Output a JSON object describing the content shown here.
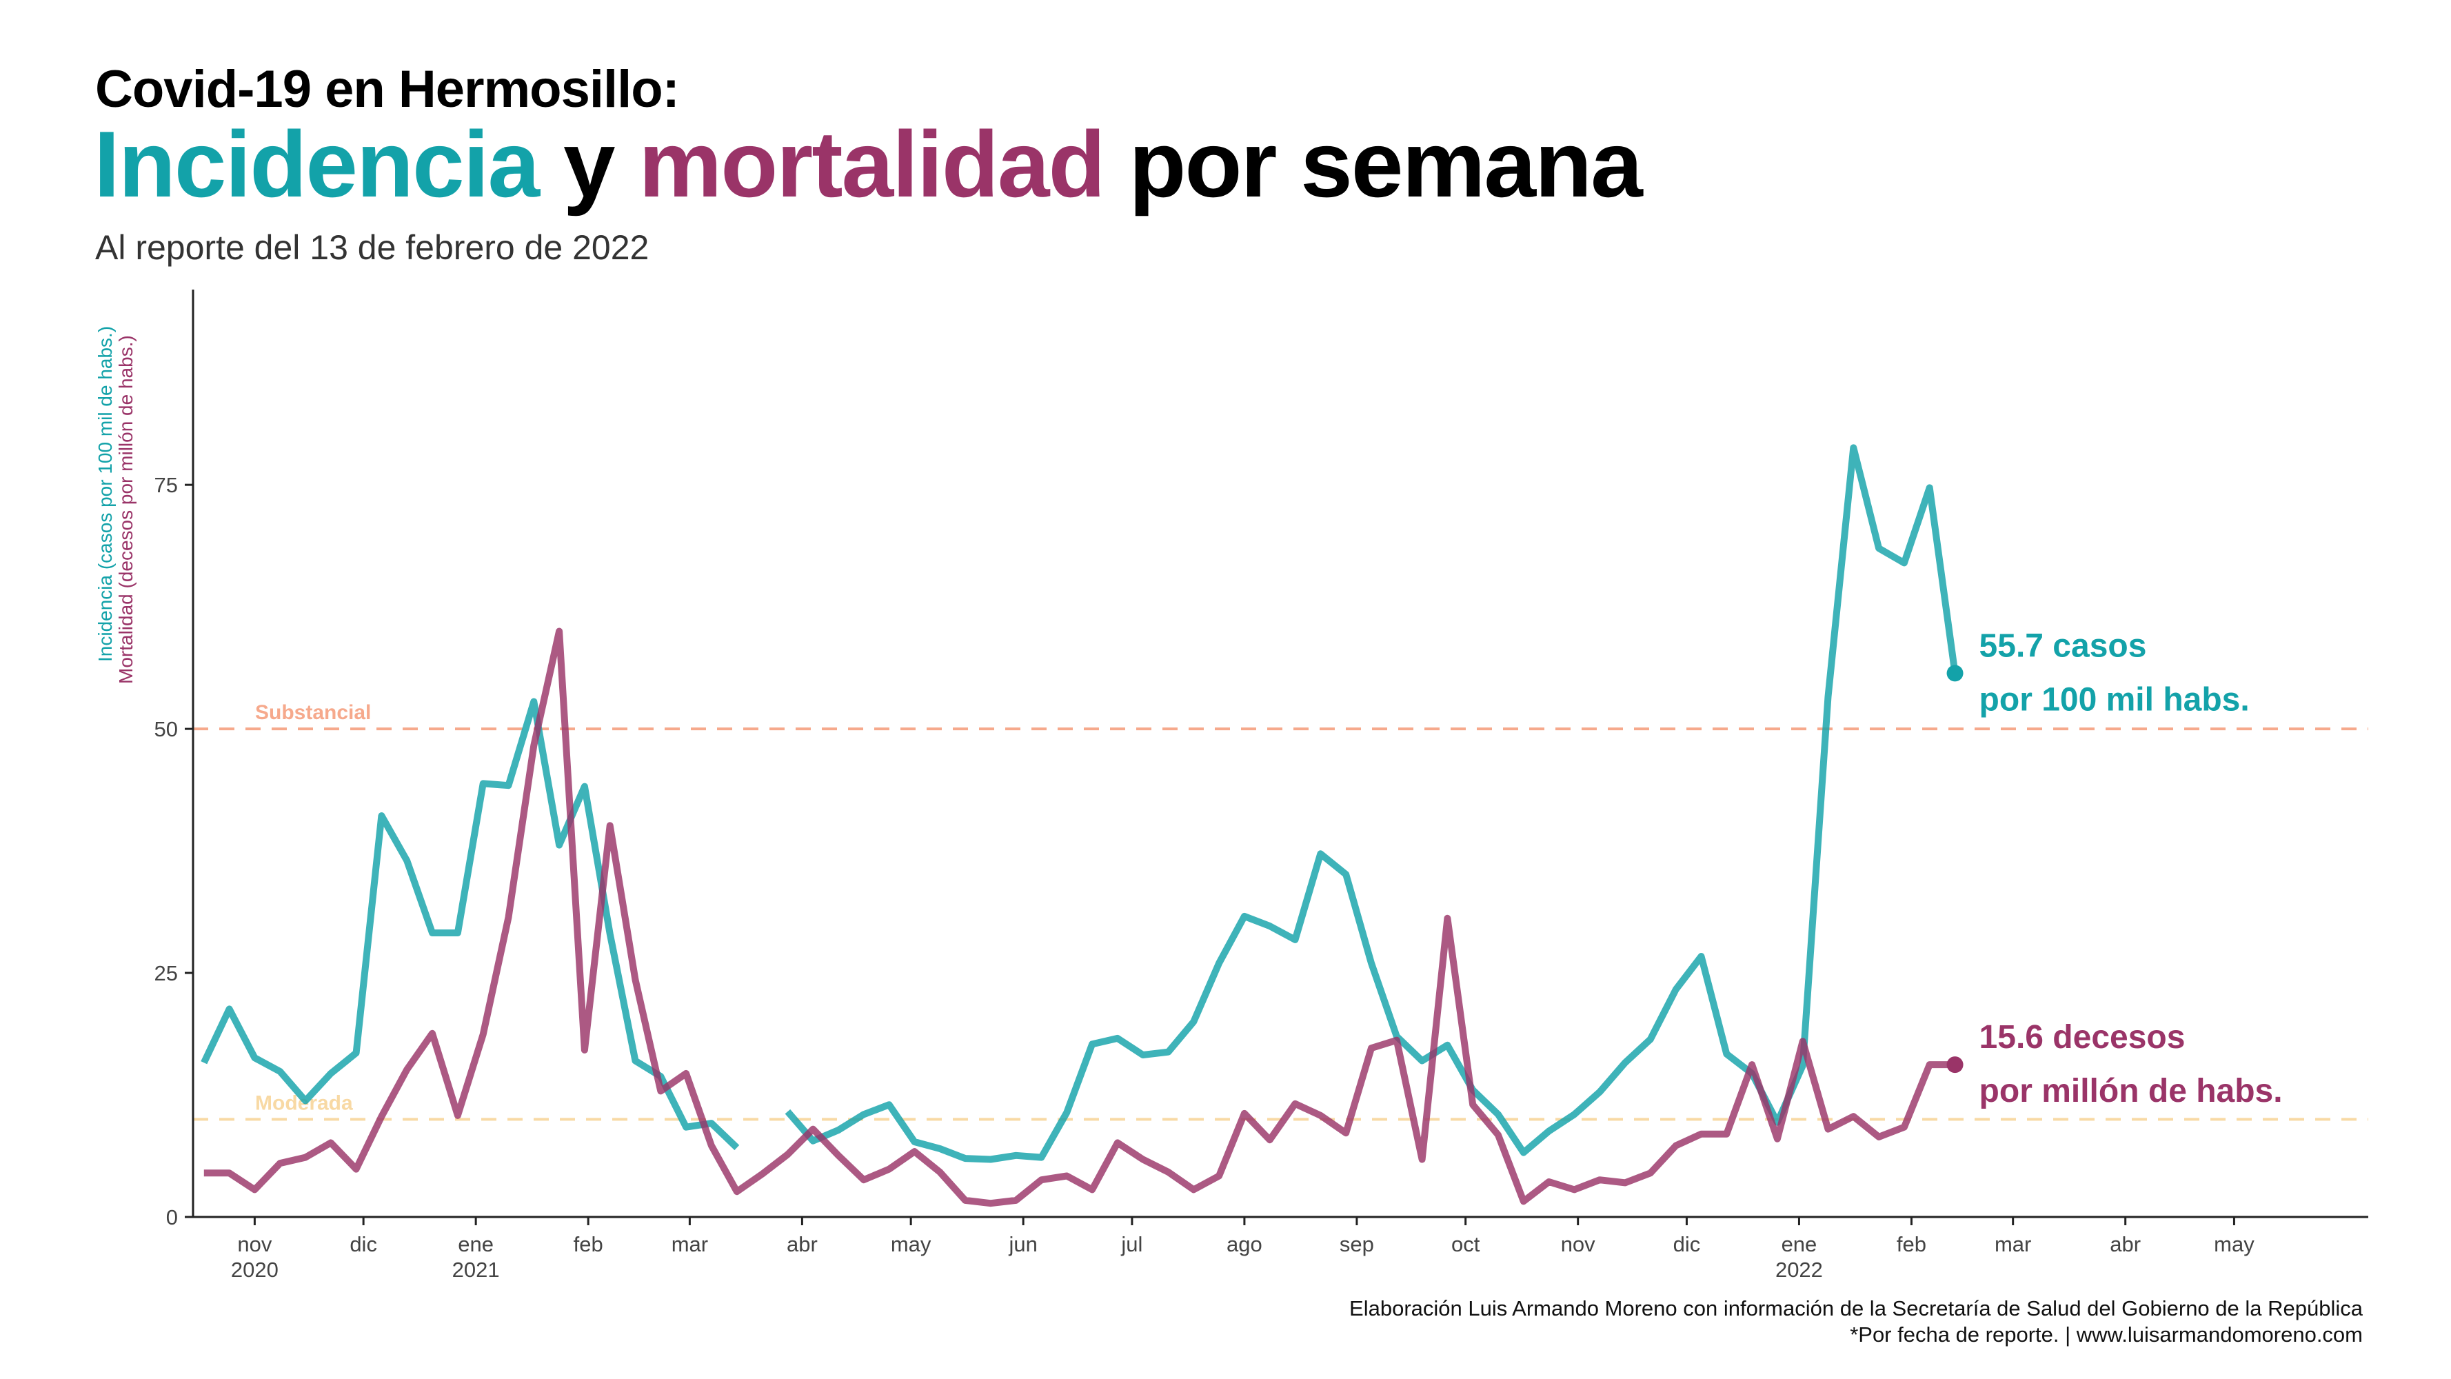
{
  "header": {
    "title_line1": "Covid-19 en Hermosillo:",
    "title_incidencia": "Incidencia",
    "title_y": " y ",
    "title_mortalidad": "mortalidad",
    "title_rest": " por semana",
    "subtitle": "Al reporte del 13 de febrero de 2022"
  },
  "footer": {
    "caption_line1": "Elaboración Luis Armando Moreno con información de la Secretaría de Salud del Gobierno de la República",
    "caption_line2": "*Por fecha de reporte. | www.luisarmandomoreno.com"
  },
  "colors": {
    "incidencia": "#13a2a9",
    "mortalidad": "#9a3468",
    "substancial": "#f6a98c",
    "moderada": "#f8d9a4",
    "axis": "#222222"
  },
  "chart_data": {
    "type": "line",
    "ylabel_incidencia": "Incidencia (casos por 100 mil de habs.)",
    "ylabel_mortalidad": "Mortalidad (decesos por millón de habs.)",
    "ylim": [
      0,
      95
    ],
    "xlim": [
      "2020-10-15",
      "2022-06-07"
    ],
    "yticks": [
      0,
      25,
      50,
      75
    ],
    "xticks": [
      {
        "date": "2020-11-01",
        "label": "nov",
        "year": "2020"
      },
      {
        "date": "2020-12-01",
        "label": "dic",
        "year": ""
      },
      {
        "date": "2021-01-01",
        "label": "ene",
        "year": "2021"
      },
      {
        "date": "2021-02-01",
        "label": "feb",
        "year": ""
      },
      {
        "date": "2021-03-01",
        "label": "mar",
        "year": ""
      },
      {
        "date": "2021-04-01",
        "label": "abr",
        "year": ""
      },
      {
        "date": "2021-05-01",
        "label": "may",
        "year": ""
      },
      {
        "date": "2021-06-01",
        "label": "jun",
        "year": ""
      },
      {
        "date": "2021-07-01",
        "label": "jul",
        "year": ""
      },
      {
        "date": "2021-08-01",
        "label": "ago",
        "year": ""
      },
      {
        "date": "2021-09-01",
        "label": "sep",
        "year": ""
      },
      {
        "date": "2021-10-01",
        "label": "oct",
        "year": ""
      },
      {
        "date": "2021-11-01",
        "label": "nov",
        "year": ""
      },
      {
        "date": "2021-12-01",
        "label": "dic",
        "year": ""
      },
      {
        "date": "2022-01-01",
        "label": "ene",
        "year": "2022"
      },
      {
        "date": "2022-02-01",
        "label": "feb",
        "year": ""
      },
      {
        "date": "2022-03-01",
        "label": "mar",
        "year": ""
      },
      {
        "date": "2022-04-01",
        "label": "abr",
        "year": ""
      },
      {
        "date": "2022-05-01",
        "label": "may",
        "year": ""
      }
    ],
    "reference_lines": [
      {
        "name": "Substancial",
        "y": 50
      },
      {
        "name": "Moderada",
        "y": 10
      }
    ],
    "series": [
      {
        "name": "Incidencia",
        "points": [
          [
            "2020-10-18",
            15.8
          ],
          [
            "2020-10-25",
            21.3
          ],
          [
            "2020-11-01",
            16.3
          ],
          [
            "2020-11-08",
            14.9
          ],
          [
            "2020-11-15",
            11.9
          ],
          [
            "2020-11-22",
            14.7
          ],
          [
            "2020-11-29",
            16.8
          ],
          [
            "2020-12-06",
            41.1
          ],
          [
            "2020-12-13",
            36.5
          ],
          [
            "2020-12-20",
            29.1
          ],
          [
            "2020-12-27",
            29.1
          ],
          [
            "2021-01-03",
            44.4
          ],
          [
            "2021-01-10",
            44.2
          ],
          [
            "2021-01-17",
            52.8
          ],
          [
            "2021-01-24",
            38.1
          ],
          [
            "2021-01-31",
            44.1
          ],
          [
            "2021-02-07",
            29.0
          ],
          [
            "2021-02-14",
            16.0
          ],
          [
            "2021-02-21",
            14.4
          ],
          [
            "2021-02-28",
            9.2
          ],
          [
            "2021-03-07",
            9.6
          ],
          [
            "2021-03-14",
            7.1
          ],
          [
            null,
            null
          ],
          [
            "2021-03-28",
            10.8
          ],
          [
            "2021-04-04",
            7.8
          ],
          [
            "2021-04-11",
            8.9
          ],
          [
            "2021-04-18",
            10.5
          ],
          [
            "2021-04-25",
            11.5
          ],
          [
            "2021-05-02",
            7.7
          ],
          [
            "2021-05-09",
            7.0
          ],
          [
            "2021-05-16",
            6.0
          ],
          [
            "2021-05-23",
            5.9
          ],
          [
            "2021-05-30",
            6.3
          ],
          [
            "2021-06-06",
            6.1
          ],
          [
            "2021-06-13",
            10.7
          ],
          [
            "2021-06-20",
            17.7
          ],
          [
            "2021-06-27",
            18.3
          ],
          [
            "2021-07-04",
            16.6
          ],
          [
            "2021-07-11",
            16.9
          ],
          [
            "2021-07-18",
            20.0
          ],
          [
            "2021-07-25",
            26.0
          ],
          [
            "2021-08-01",
            30.8
          ],
          [
            "2021-08-08",
            29.8
          ],
          [
            "2021-08-15",
            28.4
          ],
          [
            "2021-08-22",
            37.2
          ],
          [
            "2021-08-29",
            35.1
          ],
          [
            "2021-09-05",
            26.0
          ],
          [
            "2021-09-12",
            18.5
          ],
          [
            "2021-09-19",
            16.0
          ],
          [
            "2021-09-26",
            17.6
          ],
          [
            "2021-10-03",
            13.0
          ],
          [
            "2021-10-10",
            10.5
          ],
          [
            "2021-10-17",
            6.6
          ],
          [
            "2021-10-24",
            8.8
          ],
          [
            "2021-10-31",
            10.5
          ],
          [
            "2021-11-07",
            12.8
          ],
          [
            "2021-11-14",
            15.8
          ],
          [
            "2021-11-21",
            18.2
          ],
          [
            "2021-11-28",
            23.3
          ],
          [
            "2021-12-05",
            26.7
          ],
          [
            "2021-12-12",
            16.7
          ],
          [
            "2021-12-19",
            14.7
          ],
          [
            "2021-12-26",
            9.7
          ],
          [
            "2022-01-02",
            15.5
          ],
          [
            "2022-01-09",
            53.3
          ],
          [
            "2022-01-16",
            78.8
          ],
          [
            "2022-01-23",
            68.5
          ],
          [
            "2022-01-30",
            67.0
          ],
          [
            "2022-02-06",
            74.7
          ],
          [
            "2022-02-13",
            55.7
          ]
        ]
      },
      {
        "name": "Mortalidad",
        "points": [
          [
            "2020-10-18",
            4.5
          ],
          [
            "2020-10-25",
            4.5
          ],
          [
            "2020-11-01",
            2.8
          ],
          [
            "2020-11-08",
            5.5
          ],
          [
            "2020-11-15",
            6.1
          ],
          [
            "2020-11-22",
            7.6
          ],
          [
            "2020-11-29",
            4.9
          ],
          [
            "2020-12-06",
            10.3
          ],
          [
            "2020-12-13",
            15.1
          ],
          [
            "2020-12-20",
            18.8
          ],
          [
            "2020-12-27",
            10.4
          ],
          [
            "2021-01-03",
            18.7
          ],
          [
            "2021-01-10",
            30.7
          ],
          [
            "2021-01-17",
            48.3
          ],
          [
            "2021-01-24",
            60.0
          ],
          [
            "2021-01-31",
            17.1
          ],
          [
            "2021-02-07",
            40.1
          ],
          [
            "2021-02-14",
            24.3
          ],
          [
            "2021-02-21",
            12.9
          ],
          [
            "2021-02-28",
            14.7
          ],
          [
            "2021-03-07",
            7.3
          ],
          [
            "2021-03-14",
            2.6
          ],
          [
            "2021-03-21",
            4.4
          ],
          [
            "2021-03-28",
            6.4
          ],
          [
            "2021-04-04",
            9.0
          ],
          [
            "2021-04-11",
            6.3
          ],
          [
            "2021-04-18",
            3.8
          ],
          [
            "2021-04-25",
            4.9
          ],
          [
            "2021-05-02",
            6.7
          ],
          [
            "2021-05-09",
            4.6
          ],
          [
            "2021-05-16",
            1.7
          ],
          [
            "2021-05-23",
            1.4
          ],
          [
            "2021-05-30",
            1.7
          ],
          [
            "2021-06-06",
            3.8
          ],
          [
            "2021-06-13",
            4.2
          ],
          [
            "2021-06-20",
            2.8
          ],
          [
            "2021-06-27",
            7.6
          ],
          [
            "2021-07-04",
            5.9
          ],
          [
            "2021-07-11",
            4.6
          ],
          [
            "2021-07-18",
            2.8
          ],
          [
            "2021-07-25",
            4.2
          ],
          [
            "2021-08-01",
            10.6
          ],
          [
            "2021-08-08",
            7.9
          ],
          [
            "2021-08-15",
            11.6
          ],
          [
            "2021-08-22",
            10.4
          ],
          [
            "2021-08-29",
            8.6
          ],
          [
            "2021-09-05",
            17.3
          ],
          [
            "2021-09-12",
            18.1
          ],
          [
            "2021-09-19",
            5.9
          ],
          [
            "2021-09-26",
            30.6
          ],
          [
            "2021-10-03",
            11.5
          ],
          [
            "2021-10-10",
            8.4
          ],
          [
            "2021-10-17",
            1.6
          ],
          [
            "2021-10-24",
            3.6
          ],
          [
            "2021-10-31",
            2.8
          ],
          [
            "2021-11-07",
            3.8
          ],
          [
            "2021-11-14",
            3.5
          ],
          [
            "2021-11-21",
            4.5
          ],
          [
            "2021-11-28",
            7.3
          ],
          [
            "2021-12-05",
            8.5
          ],
          [
            "2021-12-12",
            8.5
          ],
          [
            "2021-12-19",
            15.6
          ],
          [
            "2021-12-26",
            8.0
          ],
          [
            "2022-01-02",
            18.0
          ],
          [
            "2022-01-09",
            9.0
          ],
          [
            "2022-01-16",
            10.3
          ],
          [
            "2022-01-23",
            8.2
          ],
          [
            "2022-01-30",
            9.2
          ],
          [
            "2022-02-06",
            15.6
          ],
          [
            "2022-02-13",
            15.6
          ]
        ]
      }
    ],
    "annotations": [
      {
        "series": "Incidencia",
        "line1": "55.7 casos",
        "line2": "por 100 mil habs.",
        "value": 55.7,
        "date": "2022-02-13"
      },
      {
        "series": "Mortalidad",
        "line1": "15.6 decesos",
        "line2": "por millón de habs.",
        "value": 15.6,
        "date": "2022-02-13"
      }
    ]
  }
}
